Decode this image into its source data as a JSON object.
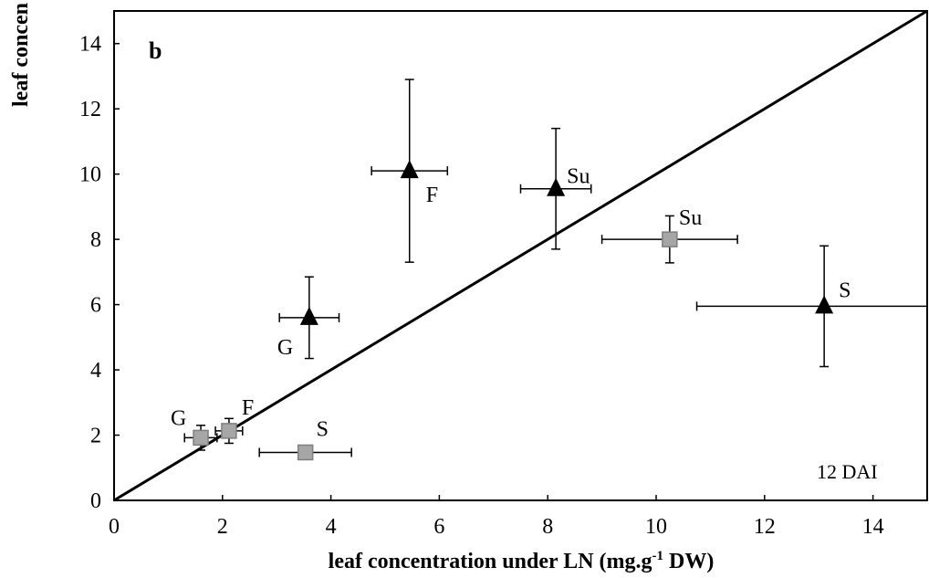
{
  "chart_data": {
    "type": "scatter",
    "panel_label": "b",
    "xlabel_prefix": "leaf concentration under LN (mg.g",
    "xlabel_sup": "-1",
    "xlabel_suffix": " DW)",
    "ylabel": "leaf concen",
    "annotation": "12 DAI",
    "xlim": [
      0,
      15
    ],
    "ylim": [
      0,
      15
    ],
    "xticks": [
      0,
      2,
      4,
      6,
      8,
      10,
      12,
      14
    ],
    "yticks": [
      0,
      2,
      4,
      6,
      8,
      10,
      12,
      14
    ],
    "grid": false,
    "reference_line": {
      "from": [
        0,
        0
      ],
      "to": [
        15,
        15
      ]
    },
    "colors": {
      "triangle": "#000000",
      "square": "#a6a6a6",
      "square_edge": "#7f7f7f"
    },
    "series": [
      {
        "marker": "triangle",
        "points": [
          {
            "label": "G",
            "x": 3.6,
            "y": 5.6,
            "xerr": 0.55,
            "yerr": 1.25
          },
          {
            "label": "F",
            "x": 5.45,
            "y": 10.1,
            "xerr": 0.7,
            "yerr": 2.8
          },
          {
            "label": "Su",
            "x": 8.15,
            "y": 9.55,
            "xerr": 0.65,
            "yerr": 1.85
          },
          {
            "label": "S",
            "x": 13.1,
            "y": 5.95,
            "xerr": 2.35,
            "yerr": 1.85
          }
        ]
      },
      {
        "marker": "square",
        "points": [
          {
            "label": "G",
            "x": 1.6,
            "y": 1.92,
            "xerr": 0.3,
            "yerr": 0.38
          },
          {
            "label": "F",
            "x": 2.12,
            "y": 2.13,
            "xerr": 0.25,
            "yerr": 0.38
          },
          {
            "label": "S",
            "x": 3.53,
            "y": 1.47,
            "xerr": 0.85,
            "yerr": 0.0
          },
          {
            "label": "Su",
            "x": 10.25,
            "y": 8.0,
            "xerr": 1.25,
            "yerr": 0.72
          }
        ]
      }
    ]
  }
}
